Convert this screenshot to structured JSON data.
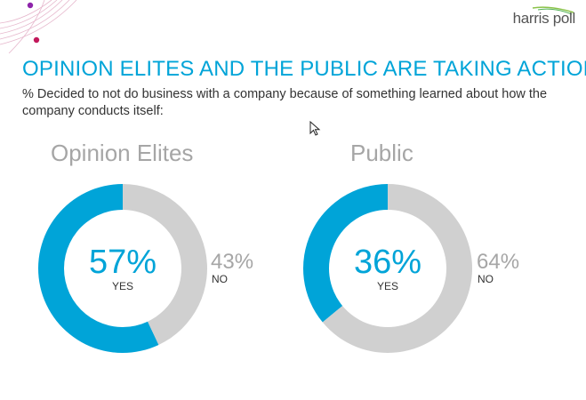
{
  "logo": {
    "text": "harris poll"
  },
  "header": {
    "title": "OPINION ELITES AND THE PUBLIC ARE TAKING ACTION",
    "subtitle": "% Decided to not do business with a company because of something learned about how the company conducts itself:"
  },
  "colors": {
    "yes": "#00a4d8",
    "no": "#d0d0d0",
    "title": "#00a4d8",
    "muted": "#a6a6a6",
    "decor": "#c2185b"
  },
  "chart_data": [
    {
      "type": "pie",
      "title": "Opinion Elites",
      "slices": [
        {
          "label": "YES",
          "value": 57,
          "display": "57%"
        },
        {
          "label": "NO",
          "value": 43,
          "display": "43%"
        }
      ]
    },
    {
      "type": "pie",
      "title": "Public",
      "slices": [
        {
          "label": "YES",
          "value": 36,
          "display": "36%"
        },
        {
          "label": "NO",
          "value": 64,
          "display": "64%"
        }
      ]
    }
  ]
}
